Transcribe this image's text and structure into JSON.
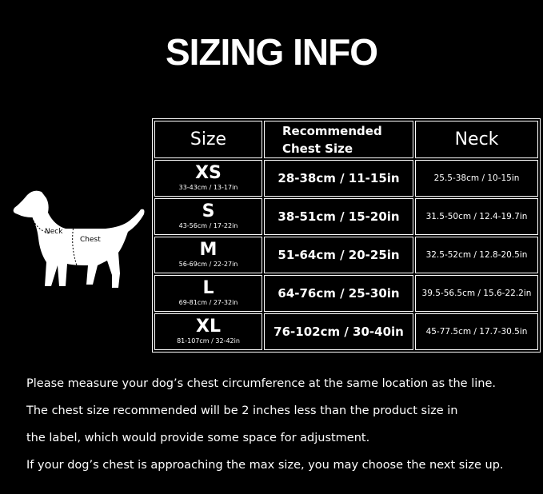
{
  "title": "SIZING INFO",
  "table": {
    "headers": {
      "size": "Size",
      "chest_line1": "Recommended",
      "chest_line2": "Chest Size",
      "neck": "Neck"
    },
    "rows": [
      {
        "size": "XS",
        "range": "33-43cm / 13-17in",
        "chest": "28-38cm / 11-15in",
        "neck": "25.5-38cm / 10-15in"
      },
      {
        "size": "S",
        "range": "43-56cm / 17-22in",
        "chest": "38-51cm / 15-20in",
        "neck": "31.5-50cm / 12.4-19.7in"
      },
      {
        "size": "M",
        "range": "56-69cm / 22-27in",
        "chest": "51-64cm / 20-25in",
        "neck": "32.5-52cm / 12.8-20.5in"
      },
      {
        "size": "L",
        "range": "69-81cm / 27-32in",
        "chest": "64-76cm / 25-30in",
        "neck": "39.5-56.5cm / 15.6-22.2in"
      },
      {
        "size": "XL",
        "range": "81-107cm / 32-42in",
        "chest": "76-102cm / 30-40in",
        "neck": "45-77.5cm / 17.7-30.5in"
      }
    ]
  },
  "dog": {
    "neck_label": "Neck",
    "chest_label": "Chest"
  },
  "notes": [
    "Please measure your dog’s chest circumference at the same location as the line.",
    "The chest size recommended will be 2 inches less than the product size in",
    "the label, which would provide some space for adjustment.",
    "If your dog’s chest is approaching the max size, you may choose the next size up."
  ]
}
